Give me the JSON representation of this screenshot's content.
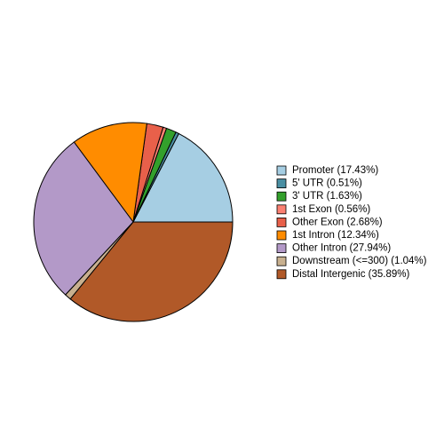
{
  "chart_data": {
    "type": "pie",
    "categories": [
      "Promoter (17.43%)",
      "5' UTR (0.51%)",
      "3' UTR (1.63%)",
      "1st Exon (0.56%)",
      "Other Exon (2.68%)",
      "1st Intron (12.34%)",
      "Other Intron (27.94%)",
      "Downstream (<=300) (1.04%)",
      "Distal Intergenic (35.89%)"
    ],
    "values": [
      17.43,
      0.51,
      1.63,
      0.56,
      2.68,
      12.34,
      27.94,
      1.04,
      35.89
    ],
    "colors": [
      "#a6cee3",
      "#4a8fa3",
      "#33a02c",
      "#fb8072",
      "#e8604a",
      "#ff8c00",
      "#b399c8",
      "#c8b08f",
      "#b15928"
    ],
    "legend": "right"
  }
}
